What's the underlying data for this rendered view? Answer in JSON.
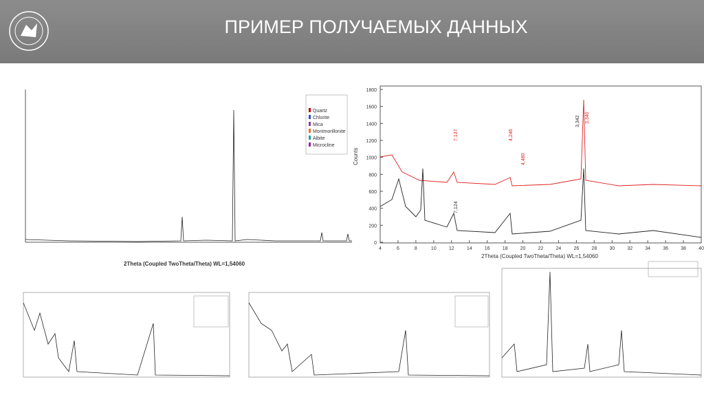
{
  "header": {
    "title": "ПРИМЕР ПОЛУЧАЕМЫХ ДАННЫХ"
  },
  "panels": [
    {
      "legend": [
        "Quartz",
        "Chlorite",
        "Mica",
        "Montmorillonite",
        "Albite",
        "Microcline"
      ],
      "x_label": "2Theta (Coupled TwoTheta/Theta) WL=1,54060"
    },
    {
      "y_label": "Counts",
      "x_label": "2Theta (Coupled TwoTheta/Theta) WL=1,54060",
      "yticks": [
        0,
        200,
        400,
        600,
        800,
        1000,
        1200,
        1400,
        1600,
        1800
      ],
      "xticks": [
        4,
        6,
        8,
        10,
        12,
        14,
        16,
        18,
        20,
        22,
        24,
        26,
        28,
        30,
        32,
        34,
        36,
        38,
        40
      ],
      "peak_labels": [
        "3,342",
        "3,340",
        "4,246",
        "7,137",
        "7,124",
        "4,480"
      ]
    }
  ]
}
